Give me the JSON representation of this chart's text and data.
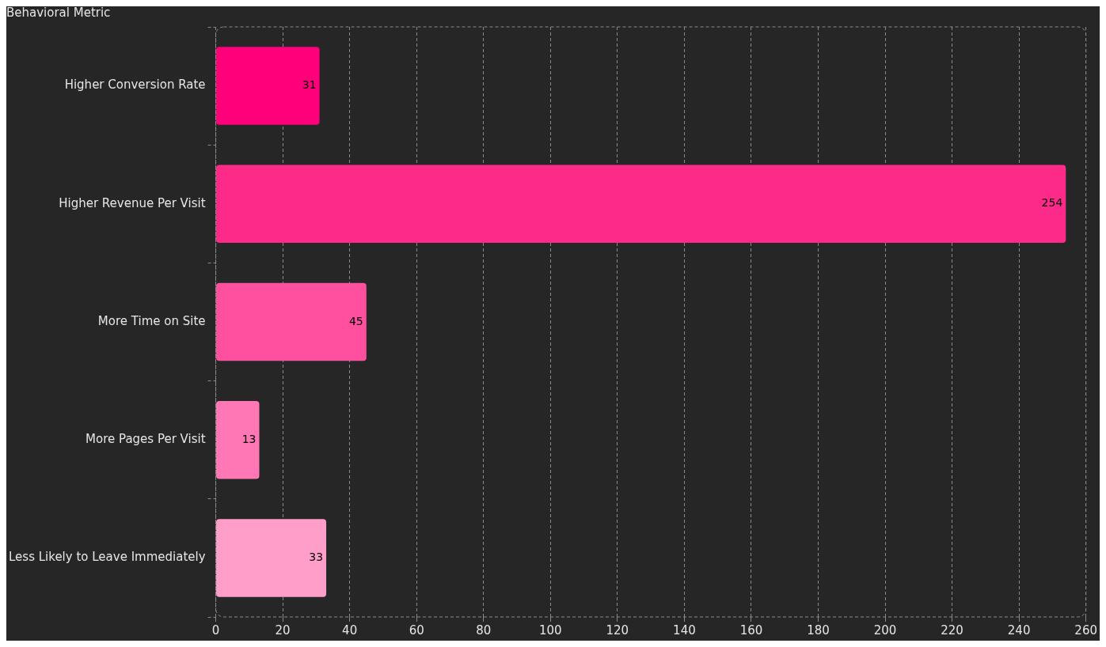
{
  "chart_data": {
    "type": "bar",
    "orientation": "horizontal",
    "ylabel": "Behavioral Metric",
    "categories": [
      "Higher Conversion Rate",
      "Higher Revenue Per Visit",
      "More Time on Site",
      "More Pages Per Visit",
      "Less Likely to Leave Immediately"
    ],
    "values": [
      31,
      254,
      45,
      13,
      33
    ],
    "colors": [
      "#ff007a",
      "#fd2a8a",
      "#ff4f9f",
      "#ff77b4",
      "#ff9ec9"
    ],
    "xlim": [
      0,
      260
    ],
    "xticks": [
      0,
      20,
      40,
      60,
      80,
      100,
      120,
      140,
      160,
      180,
      200,
      220,
      240,
      260
    ],
    "grid": "x",
    "data_labels": true
  }
}
